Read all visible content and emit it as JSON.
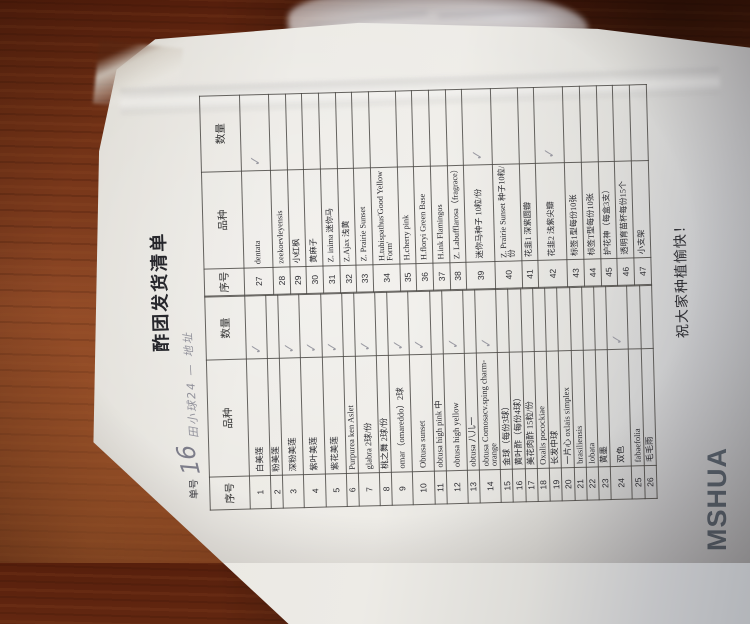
{
  "title": "酢团发货清单",
  "order_line": {
    "label": "单号",
    "number": "16",
    "note": "田小球24 — 地址"
  },
  "table": {
    "headers": {
      "no": "序号",
      "name": "品种",
      "qty": "数量"
    },
    "group1": [
      {
        "no": "1",
        "name": "白美莲",
        "qty": "✓"
      },
      {
        "no": "2",
        "name": "粉美莲",
        "qty": ""
      },
      {
        "no": "3",
        "name": "深粉美莲",
        "qty": "✓"
      },
      {
        "no": "4",
        "name": "紫叶美莲",
        "qty": "✓"
      },
      {
        "no": "5",
        "name": "紫花美莲",
        "qty": "✓"
      },
      {
        "no": "6",
        "name": "Purpurea ken Aslet",
        "qty": ""
      },
      {
        "no": "7",
        "name": "glabra 2球/份",
        "qty": "✓"
      },
      {
        "no": "8",
        "name": "桃之舞 2球/份",
        "qty": ""
      },
      {
        "no": "9",
        "name": "omar（omareddo）2球",
        "qty": "✓"
      },
      {
        "no": "10",
        "name": "Obtusa sunset",
        "qty": "✓"
      },
      {
        "no": "11",
        "name": "obtusa high pink 中",
        "qty": ""
      },
      {
        "no": "12",
        "name": "obtusa high yellow",
        "qty": "✓"
      },
      {
        "no": "13",
        "name": "obtusa 八儿一",
        "qty": ""
      },
      {
        "no": "14",
        "name": "obtusa Comosacv.sping charm-orange",
        "qty": "✓"
      },
      {
        "no": "15",
        "name": "金球（每份3球）",
        "qty": ""
      },
      {
        "no": "16",
        "name": "黄叶酢（每份4球）",
        "qty": ""
      },
      {
        "no": "17",
        "name": "美花肉酢 15粒/份",
        "qty": ""
      },
      {
        "no": "18",
        "name": "Oxalis pocockiae",
        "qty": ""
      },
      {
        "no": "19",
        "name": "长发中球",
        "qty": ""
      },
      {
        "no": "20",
        "name": "一片心 oxlais simplex",
        "qty": ""
      },
      {
        "no": "21",
        "name": "brasiliensis",
        "qty": ""
      },
      {
        "no": "22",
        "name": "lobata",
        "qty": ""
      },
      {
        "no": "23",
        "name": "黄墨",
        "qty": ""
      },
      {
        "no": "24",
        "name": "双色",
        "qty": "✓"
      },
      {
        "no": "25",
        "name": "fabaefolia",
        "qty": ""
      },
      {
        "no": "26",
        "name": "毛毛雨",
        "qty": ""
      }
    ],
    "group2": [
      {
        "no": "27",
        "name": "dentata",
        "qty": "✓"
      },
      {
        "no": "28",
        "name": "zeekoevleyensis",
        "qty": ""
      },
      {
        "no": "29",
        "name": "小红枫",
        "qty": ""
      },
      {
        "no": "30",
        "name": "黄麻子",
        "qty": ""
      },
      {
        "no": "31",
        "name": "Z. inima 迷你马",
        "qty": ""
      },
      {
        "no": "32",
        "name": "Z.Ajax 浅黄",
        "qty": ""
      },
      {
        "no": "33",
        "name": "Z. Prairie Sunset",
        "qty": ""
      },
      {
        "no": "34",
        "name": "H.tubispathus'Good Yellow Form'",
        "qty": ""
      },
      {
        "no": "35",
        "name": "H.cherry pink",
        "qty": ""
      },
      {
        "no": "36",
        "name": "H.floryi Green Base",
        "qty": ""
      },
      {
        "no": "37",
        "name": "H.ink Flamingos",
        "qty": ""
      },
      {
        "no": "38",
        "name": "Z. Labufflarosa（fragrace）",
        "qty": ""
      },
      {
        "no": "39",
        "name": "迷你马种子 10粒/份",
        "qty": "✓"
      },
      {
        "no": "40",
        "name": "Z. Prairie Sunset 种子10粒/份",
        "qty": ""
      },
      {
        "no": "41",
        "name": "花韭1 深紫圆瓣",
        "qty": ""
      },
      {
        "no": "42",
        "name": "花韭2 浅紫尖瓣",
        "qty": "✓"
      },
      {
        "no": "43",
        "name": "标签1型每份10张",
        "qty": ""
      },
      {
        "no": "44",
        "name": "标签T型每份10张",
        "qty": ""
      },
      {
        "no": "45",
        "name": "护花神（每盒3支）",
        "qty": ""
      },
      {
        "no": "46",
        "name": "透明育苗杯每份15个",
        "qty": ""
      },
      {
        "no": "47",
        "name": "小支架",
        "qty": ""
      }
    ]
  },
  "footer": "祝大家种植愉快！",
  "watermark": "MSHUA",
  "colors": {
    "wood": "#7b3a1c",
    "paper": "#ebe9e4",
    "paper_shadow": "#aeb1b6",
    "grid_line": "#42403c",
    "print_text": "#2c2c30",
    "pencil": "#8b8b96",
    "watermark_text": "#4b5663"
  }
}
